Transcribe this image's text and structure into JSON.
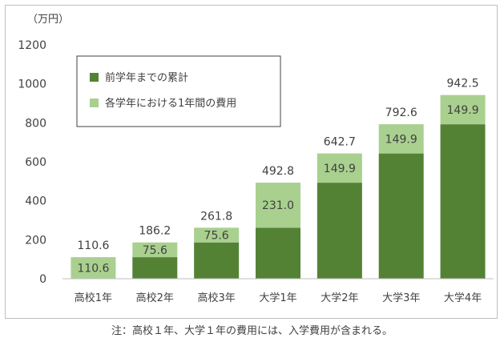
{
  "unit_label": "（万円）",
  "footnote": "注：高校１年、大学１年の費用には、入学費用が含まれる。",
  "chart_data": {
    "type": "bar",
    "stacked": true,
    "categories": [
      "高校1年",
      "高校2年",
      "高校3年",
      "大学1年",
      "大学2年",
      "大学3年",
      "大学4年"
    ],
    "series": [
      {
        "name": "前学年までの累計",
        "color": "#548235",
        "values": [
          0,
          110.6,
          186.2,
          261.8,
          492.8,
          642.7,
          792.6
        ]
      },
      {
        "name": "各学年における1年間の費用",
        "color": "#a9d08e",
        "values": [
          110.6,
          75.6,
          75.6,
          231.0,
          149.9,
          149.9,
          149.9
        ]
      }
    ],
    "segment_labels": [
      "110.6",
      "75.6",
      "75.6",
      "231.0",
      "149.9",
      "149.9",
      "149.9"
    ],
    "totals": [
      "110.6",
      "186.2",
      "261.8",
      "492.8",
      "642.7",
      "792.6",
      "942.5"
    ],
    "ylim": [
      0,
      1200
    ],
    "yticks": [
      0,
      200,
      400,
      600,
      800,
      1000,
      1200
    ],
    "legend_position": "top-left",
    "grid": false
  }
}
